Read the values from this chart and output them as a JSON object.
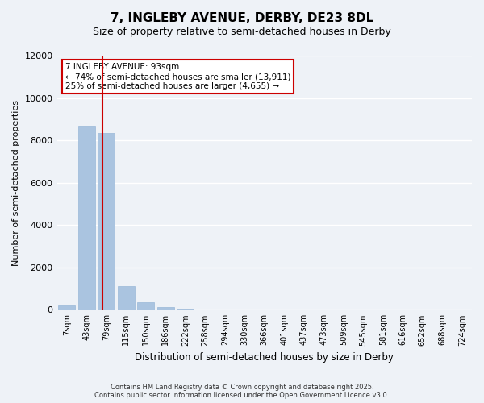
{
  "title": "7, INGLEBY AVENUE, DERBY, DE23 8DL",
  "subtitle": "Size of property relative to semi-detached houses in Derby",
  "xlabel": "Distribution of semi-detached houses by size in Derby",
  "ylabel": "Number of semi-detached properties",
  "annotation_line1": "7 INGLEBY AVENUE: 93sqm",
  "annotation_line2": "← 74% of semi-detached houses are smaller (13,911)",
  "annotation_line3": "25% of semi-detached houses are larger (4,655) →",
  "bin_labels": [
    "7sqm",
    "43sqm",
    "79sqm",
    "115sqm",
    "150sqm",
    "186sqm",
    "222sqm",
    "258sqm",
    "294sqm",
    "330sqm",
    "366sqm",
    "401sqm",
    "437sqm",
    "473sqm",
    "509sqm",
    "545sqm",
    "581sqm",
    "616sqm",
    "652sqm",
    "688sqm",
    "724sqm"
  ],
  "bar_values": [
    200,
    8700,
    8350,
    1100,
    350,
    120,
    50,
    0,
    0,
    0,
    0,
    0,
    0,
    0,
    0,
    0,
    0,
    0,
    0,
    0,
    0
  ],
  "bar_color": "#aac4e0",
  "bar_edge_color": "#9ab8d8",
  "red_line_color": "#cc0000",
  "red_line_x": 1.8,
  "background_color": "#eef2f7",
  "plot_background": "#eef2f7",
  "grid_color": "#ffffff",
  "ylim": [
    0,
    12000
  ],
  "yticks": [
    0,
    2000,
    4000,
    6000,
    8000,
    10000,
    12000
  ],
  "footer_line1": "Contains HM Land Registry data © Crown copyright and database right 2025.",
  "footer_line2": "Contains public sector information licensed under the Open Government Licence v3.0."
}
